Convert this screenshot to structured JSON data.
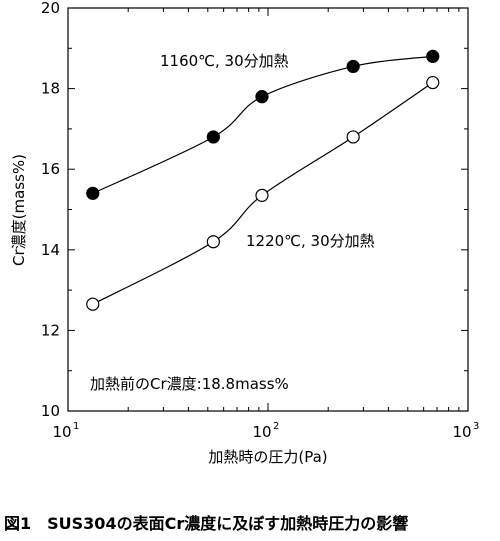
{
  "figure_caption": "図1　SUS304の表面Cr濃度に及ぼす加熱時圧力の影響",
  "chart_data": {
    "type": "scatter",
    "xlabel": "加熱時の圧力(Pa)",
    "ylabel": "Cr濃度(mass%)",
    "xscale": "log",
    "xlim": [
      10,
      1000
    ],
    "ylim": [
      10,
      20
    ],
    "grid": false,
    "x_ticks": [
      {
        "value": 10,
        "base": "10",
        "exp": "1"
      },
      {
        "value": 100,
        "base": "10",
        "exp": "2"
      },
      {
        "value": 1000,
        "base": "10",
        "exp": "3"
      }
    ],
    "y_ticks": [
      {
        "value": 10,
        "label": "10"
      },
      {
        "value": 12,
        "label": "12"
      },
      {
        "value": 14,
        "label": "14"
      },
      {
        "value": 16,
        "label": "16"
      },
      {
        "value": 18,
        "label": "18"
      },
      {
        "value": 20,
        "label": "20"
      }
    ],
    "series": [
      {
        "name": "1160℃, 30分加熱",
        "marker": "filled-circle",
        "x": [
          13.3,
          53.3,
          93.3,
          266.6,
          666.6
        ],
        "y": [
          15.4,
          16.8,
          17.8,
          18.55,
          18.8
        ]
      },
      {
        "name": "1220℃, 30分加熱",
        "marker": "open-circle",
        "x": [
          13.3,
          53.3,
          93.3,
          266.6,
          666.6
        ],
        "y": [
          12.65,
          14.2,
          15.35,
          16.8,
          18.15
        ]
      }
    ],
    "annotations": [
      {
        "text": "1160℃, 30分加熱"
      },
      {
        "text": "1220℃, 30分加熱"
      },
      {
        "text": "加熱前のCr濃度:18.8mass%"
      }
    ]
  }
}
